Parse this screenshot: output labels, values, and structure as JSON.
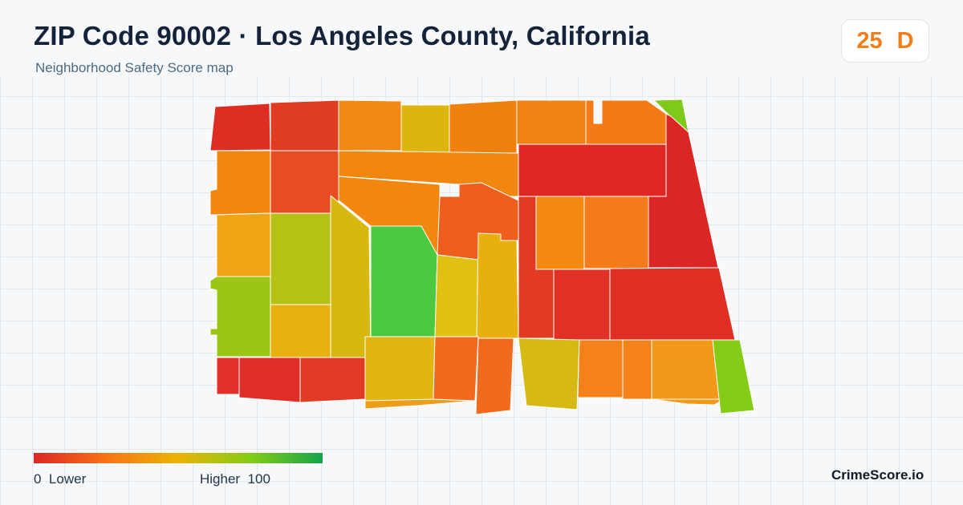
{
  "title": "ZIP Code 90002 · Los Angeles County, California",
  "subtitle": "Neighborhood Safety Score map",
  "score": {
    "value": "25",
    "grade": "D",
    "color": "#ef7f1a"
  },
  "legend": {
    "low_value": "0",
    "low_label": "Lower",
    "high_label": "Higher",
    "high_value": "100",
    "gradient_colors": [
      "#dc2626",
      "#f97316",
      "#eab308",
      "#84cc16",
      "#16a34a"
    ]
  },
  "brand": "CrimeScore.io",
  "map": {
    "border_color": "#ffffff",
    "fill_scale": "safety score (0 = lower, 100 = higher)"
  }
}
